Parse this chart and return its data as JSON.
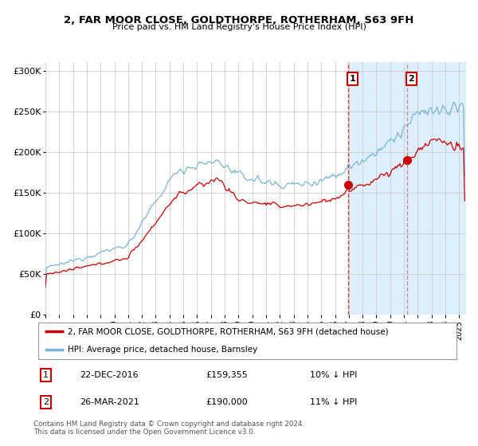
{
  "title1": "2, FAR MOOR CLOSE, GOLDTHORPE, ROTHERHAM, S63 9FH",
  "title2": "Price paid vs. HM Land Registry's House Price Index (HPI)",
  "ylabel_ticks": [
    "£0",
    "£50K",
    "£100K",
    "£150K",
    "£200K",
    "£250K",
    "£300K"
  ],
  "ytick_vals": [
    0,
    50000,
    100000,
    150000,
    200000,
    250000,
    300000
  ],
  "ylim": [
    0,
    310000
  ],
  "xlim_start": 1995.0,
  "xlim_end": 2025.5,
  "point1_x": 2016.97,
  "point1_y": 159355,
  "point2_x": 2021.23,
  "point2_y": 190000,
  "vline1_x": 2016.97,
  "vline2_x": 2021.23,
  "shade_start": 2016.97,
  "shade_end": 2025.5,
  "hpi_color": "#7ab5d8",
  "price_color": "#cc0000",
  "shade_color": "#ddeeff",
  "vline1_color": "#dd4444",
  "vline2_color": "#cc8888",
  "grid_color": "#cccccc",
  "bg_color": "#ffffff",
  "legend_label1": "2, FAR MOOR CLOSE, GOLDTHORPE, ROTHERHAM, S63 9FH (detached house)",
  "legend_label2": "HPI: Average price, detached house, Barnsley",
  "note1_num": "1",
  "note1_date": "22-DEC-2016",
  "note1_price": "£159,355",
  "note1_pct": "10% ↓ HPI",
  "note2_num": "2",
  "note2_date": "26-MAR-2021",
  "note2_price": "£190,000",
  "note2_pct": "11% ↓ HPI",
  "footer": "Contains HM Land Registry data © Crown copyright and database right 2024.\nThis data is licensed under the Open Government Licence v3.0."
}
